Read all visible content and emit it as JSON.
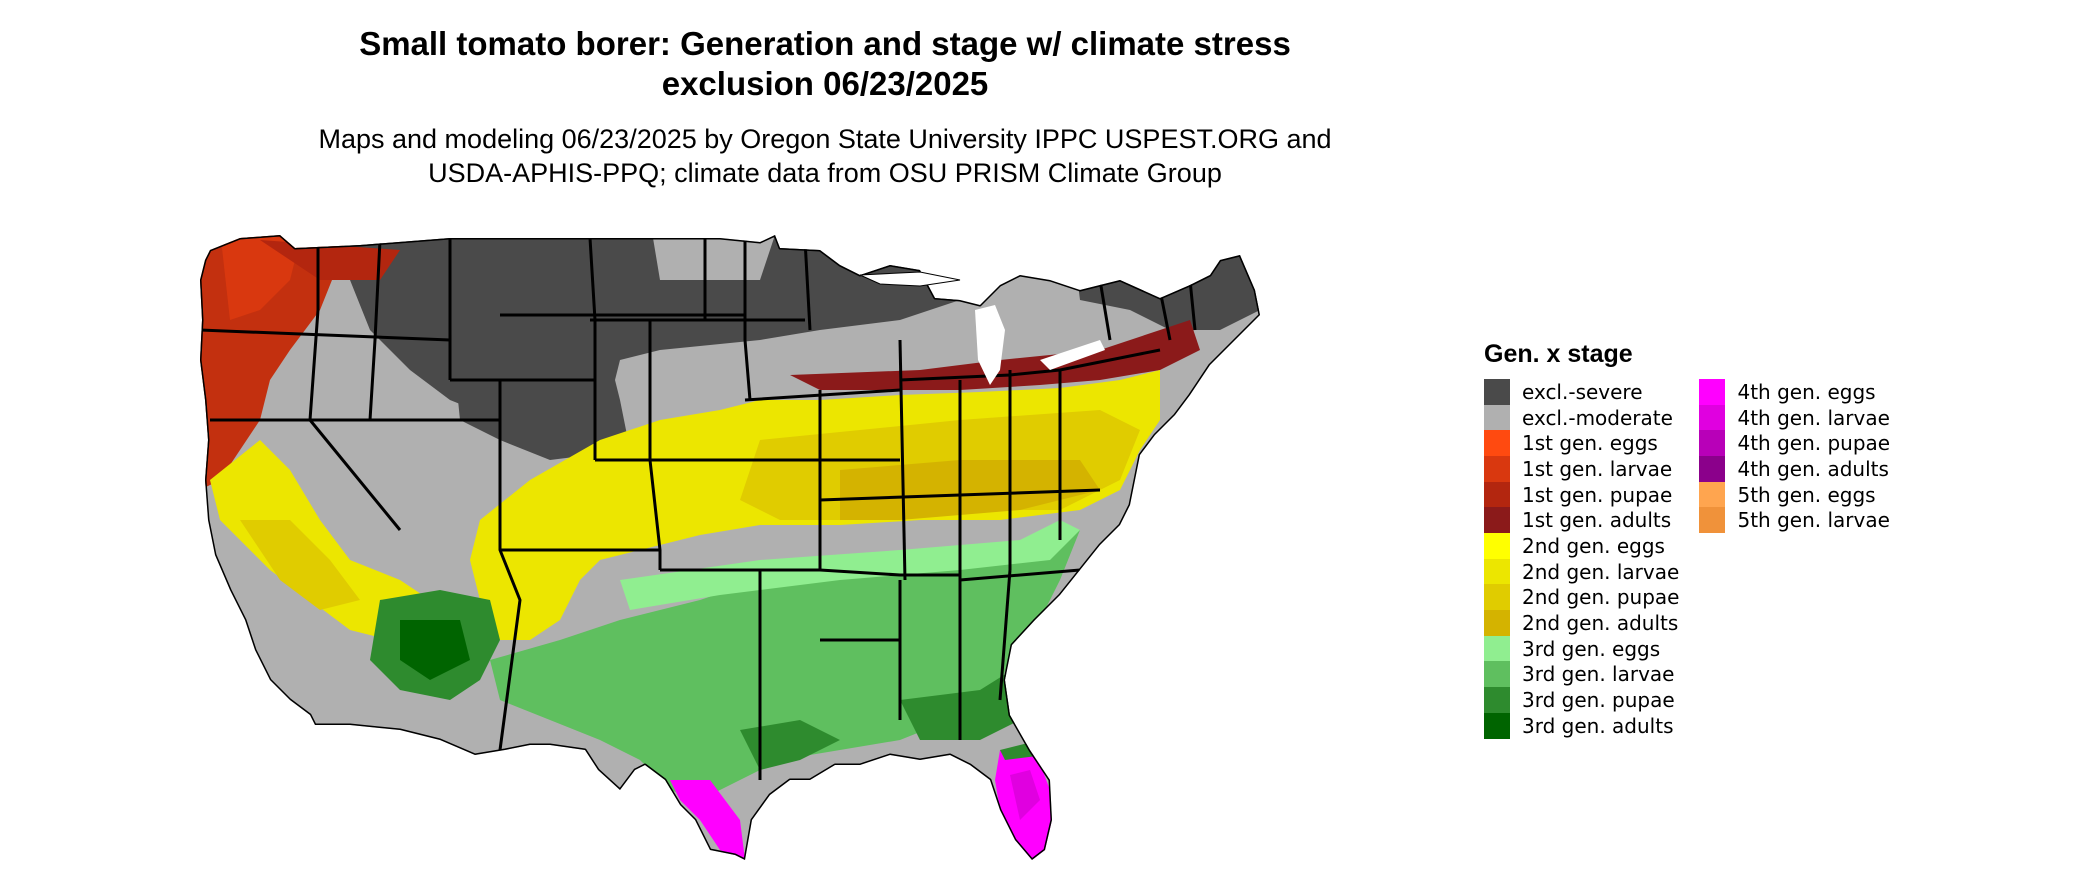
{
  "title": {
    "line1": "Small tomato borer: Generation and stage w/ climate stress",
    "line2": "exclusion 06/23/2025"
  },
  "subtitle": {
    "line1": "Maps and modeling 06/23/2025 by Oregon State University IPPC USPEST.ORG and",
    "line2": "USDA-APHIS-PPQ; climate data from OSU PRISM Climate Group"
  },
  "legend": {
    "title": "Gen. x stage",
    "items": [
      {
        "label": "excl.-severe",
        "color": "#4a4a4a"
      },
      {
        "label": "excl.-moderate",
        "color": "#b0b0b0"
      },
      {
        "label": "1st gen. eggs",
        "color": "#ff4a10"
      },
      {
        "label": "1st gen. larvae",
        "color": "#d9380f"
      },
      {
        "label": "1st gen. pupae",
        "color": "#b3260f"
      },
      {
        "label": "1st gen. adults",
        "color": "#8b1a1a"
      },
      {
        "label": "2nd gen. eggs",
        "color": "#ffff00"
      },
      {
        "label": "2nd gen. larvae",
        "color": "#ece600"
      },
      {
        "label": "2nd gen. pupae",
        "color": "#e0cc00"
      },
      {
        "label": "2nd gen. adults",
        "color": "#d4b300"
      },
      {
        "label": "3rd gen. eggs",
        "color": "#90ee90"
      },
      {
        "label": "3rd gen. larvae",
        "color": "#5fbf5f"
      },
      {
        "label": "3rd gen. pupae",
        "color": "#2e8b2e"
      },
      {
        "label": "3rd gen. adults",
        "color": "#006400"
      },
      {
        "label": "4th gen. eggs",
        "color": "#ff00ff"
      },
      {
        "label": "4th gen. larvae",
        "color": "#e000e0"
      },
      {
        "label": "4th gen. pupae",
        "color": "#b800b8"
      },
      {
        "label": "4th gen. adults",
        "color": "#8b008b"
      },
      {
        "label": "5th gen. eggs",
        "color": "#ffa54f"
      },
      {
        "label": "5th gen. larvae",
        "color": "#f0923a"
      }
    ]
  },
  "map": {
    "region": "contiguous United States"
  }
}
